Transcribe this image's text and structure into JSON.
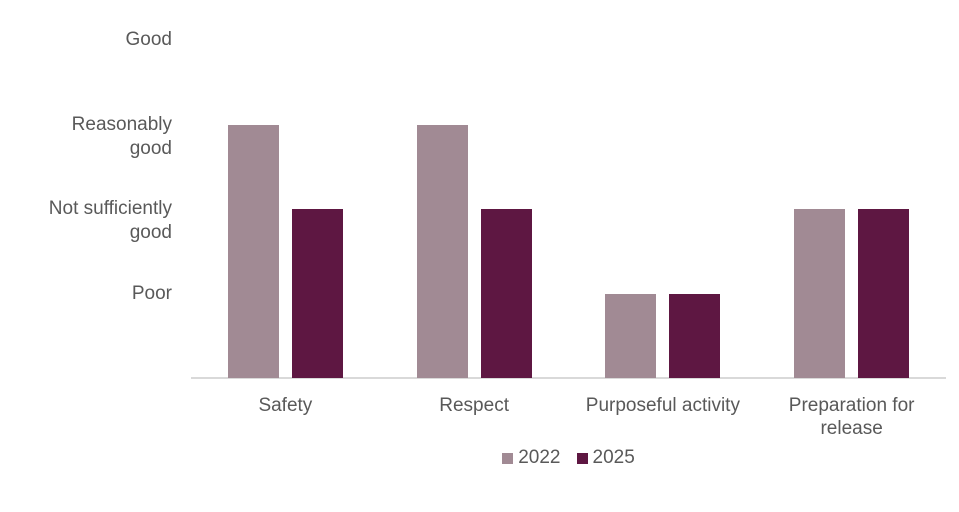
{
  "chart_data": {
    "type": "bar",
    "title": "",
    "categories": [
      "Safety",
      "Respect",
      "Purposeful activity",
      "Preparation for release"
    ],
    "series": [
      {
        "name": "2022",
        "color": "#a18a94",
        "values": [
          3,
          3,
          1,
          2
        ]
      },
      {
        "name": "2025",
        "color": "#5e1742",
        "values": [
          2,
          2,
          1,
          2
        ]
      }
    ],
    "y_ticks": [
      {
        "value": 4,
        "label": "Good"
      },
      {
        "value": 3,
        "label": "Reasonably\ngood"
      },
      {
        "value": 2,
        "label": "Not sufficiently\ngood"
      },
      {
        "value": 1,
        "label": "Poor"
      }
    ],
    "ylim": [
      0,
      4
    ],
    "grid": false,
    "legend_position": "bottom",
    "colors": {
      "axis_line": "#d9d9d9",
      "text": "#595959",
      "background": "#ffffff"
    }
  }
}
